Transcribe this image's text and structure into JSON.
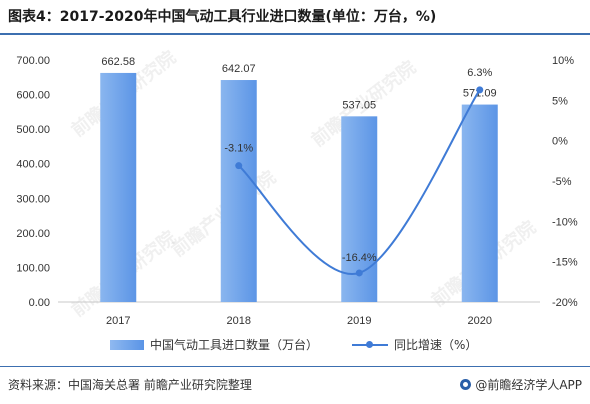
{
  "title": "图表4：2017-2020年中国气动工具行业进口数量(单位：万台，%)",
  "source": "资料来源：中国海关总署 前瞻产业研究院整理",
  "brand": "@前瞻经济学人APP",
  "watermark": "前瞻产业研究院",
  "legend": {
    "bar_label": "中国气动工具进口数量（万台）",
    "line_label": "同比增速（%）"
  },
  "colors": {
    "bar": "#6aa2ea",
    "line": "#3f7bd6",
    "rule": "#3c6fb0"
  },
  "chart_data": {
    "type": "bar+line",
    "categories": [
      "2017",
      "2018",
      "2019",
      "2020"
    ],
    "series": [
      {
        "name": "中国气动工具进口数量（万台）",
        "type": "bar",
        "axis": "left",
        "values": [
          662.58,
          642.07,
          537.05,
          571.09
        ],
        "labels": [
          "662.58",
          "642.07",
          "537.05",
          "571.09"
        ]
      },
      {
        "name": "同比增速（%）",
        "type": "line",
        "axis": "right",
        "values": [
          null,
          -3.1,
          -16.4,
          6.3
        ],
        "labels": [
          "",
          "-3.1%",
          "-16.4%",
          "6.3%"
        ]
      }
    ],
    "y_left": {
      "min": 0,
      "max": 700,
      "ticks": [
        "0.00",
        "100.00",
        "200.00",
        "300.00",
        "400.00",
        "500.00",
        "600.00",
        "700.00"
      ]
    },
    "y_right": {
      "min": -20,
      "max": 10,
      "ticks": [
        "-20%",
        "-15%",
        "-10%",
        "-5%",
        "0%",
        "5%",
        "10%"
      ]
    },
    "grid": false,
    "legend_position": "bottom"
  }
}
